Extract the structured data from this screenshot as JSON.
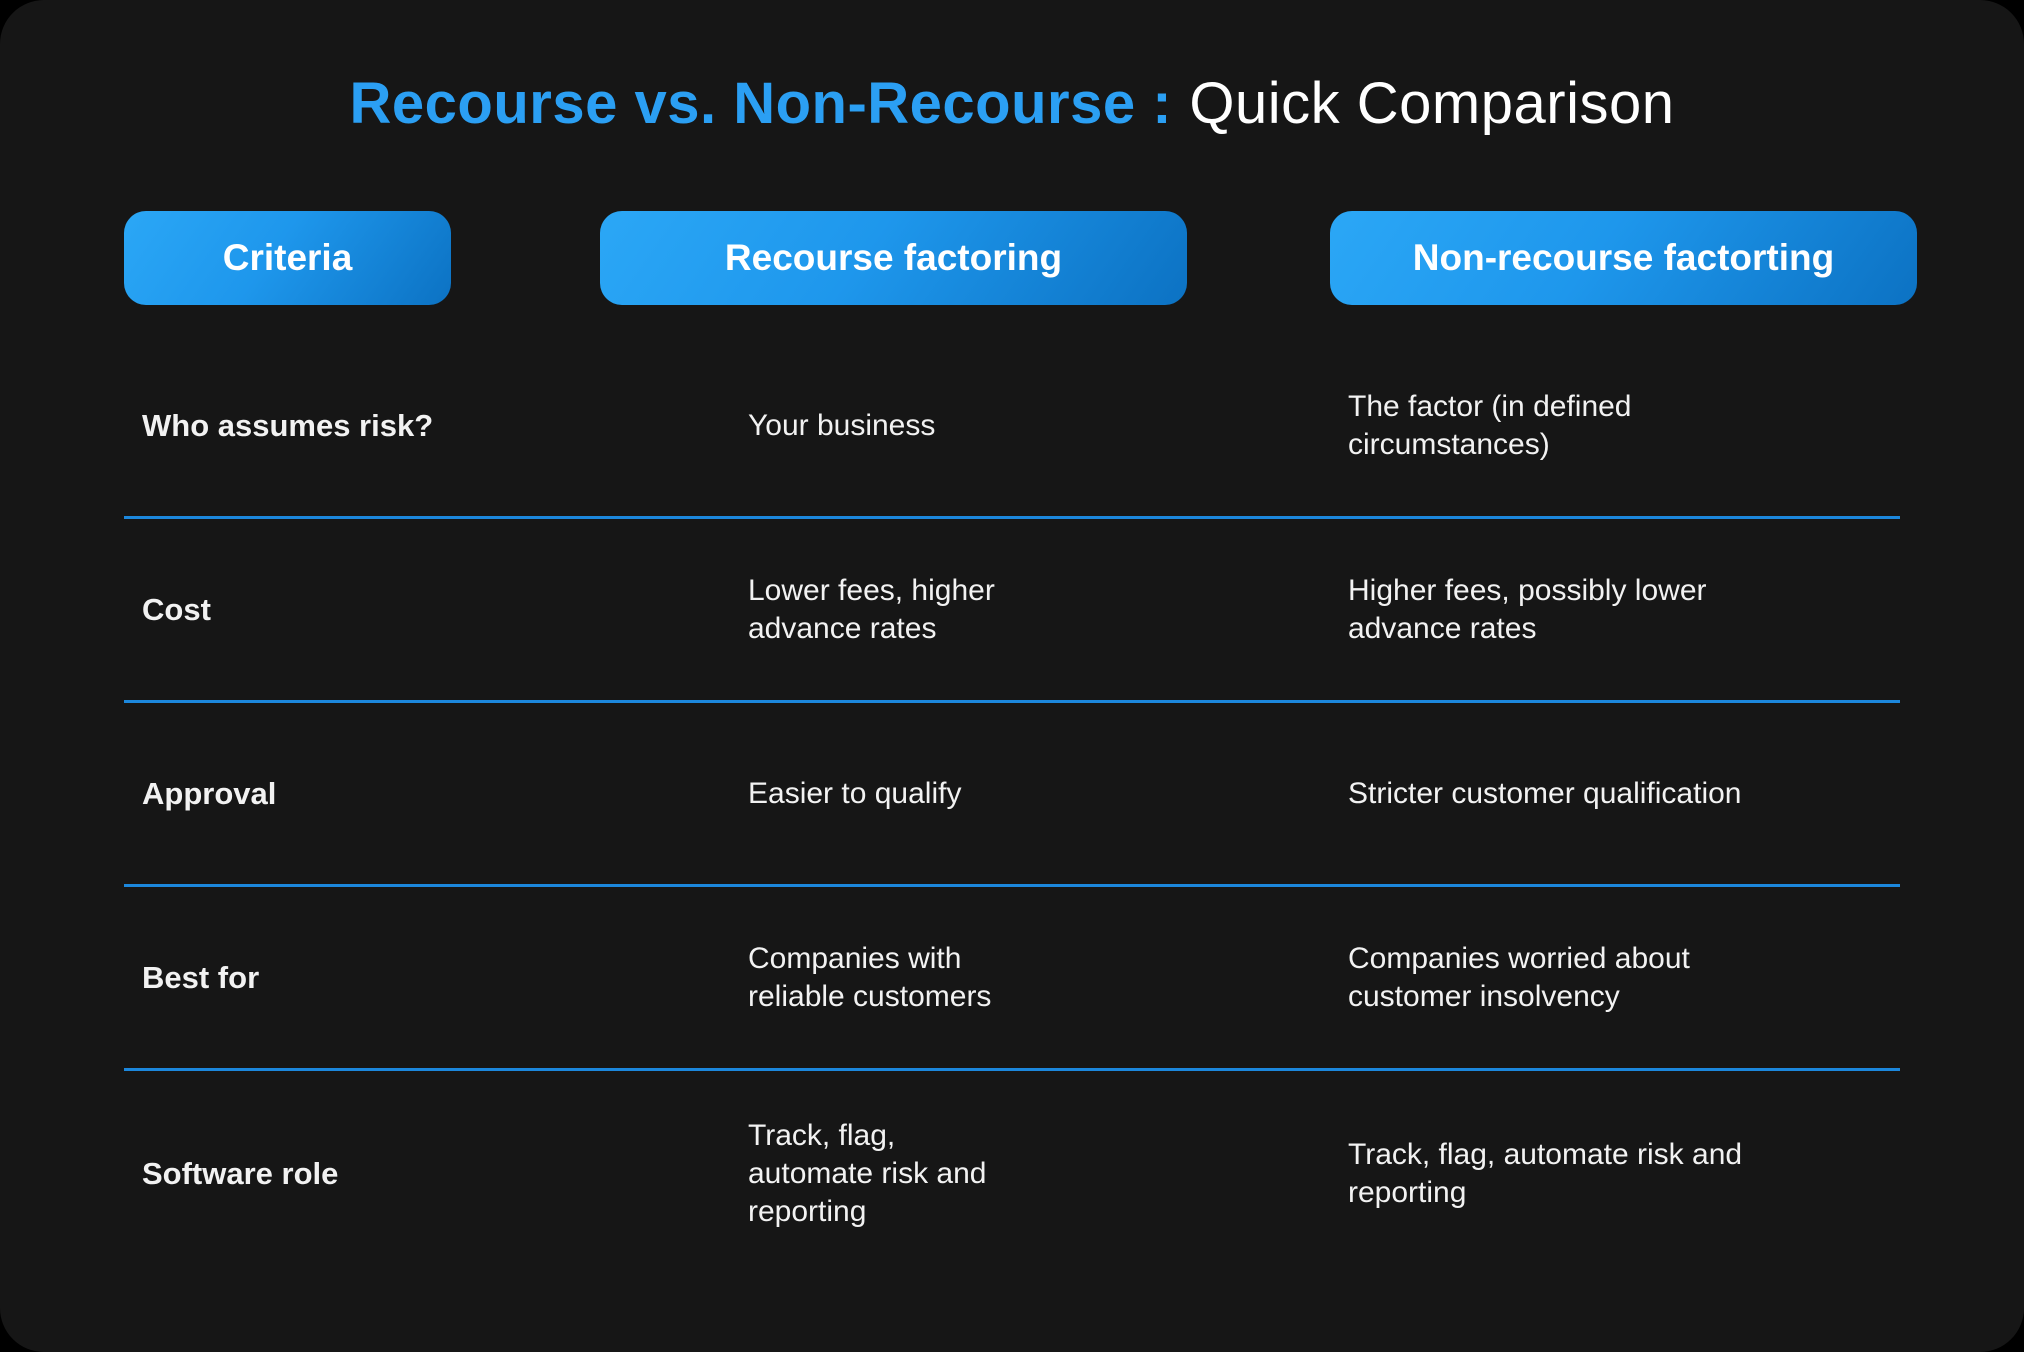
{
  "title": {
    "highlight": "Recourse vs. Non-Recourse :",
    "rest": "Quick Comparison"
  },
  "columns": [
    {
      "label": "Criteria"
    },
    {
      "label": "Recourse factoring"
    },
    {
      "label": "Non-recourse factorting"
    }
  ],
  "rows": [
    {
      "criteria": "Who assumes risk?",
      "recourse": "Your business",
      "non_recourse": "The factor (in defined circumstances)"
    },
    {
      "criteria": "Cost",
      "recourse": "Lower fees, higher advance rates",
      "non_recourse": "Higher fees, possibly lower advance rates"
    },
    {
      "criteria": "Approval",
      "recourse": "Easier to qualify",
      "non_recourse": "Stricter customer qualification"
    },
    {
      "criteria": "Best for",
      "recourse": "Companies with reliable customers",
      "non_recourse": "Companies worried about customer insolvency"
    },
    {
      "criteria": "Software role",
      "recourse": "Track, flag, automate risk and reporting",
      "non_recourse": "Track, flag, automate risk and reporting"
    }
  ],
  "colors": {
    "background": "#000000",
    "card": "#161616",
    "accent_blue": "#2B9FF3",
    "divider_blue": "#1C87DC",
    "pill_gradient_start": "#2BA7F6",
    "pill_gradient_end": "#0C72C3",
    "text": "#F2F2F2"
  }
}
